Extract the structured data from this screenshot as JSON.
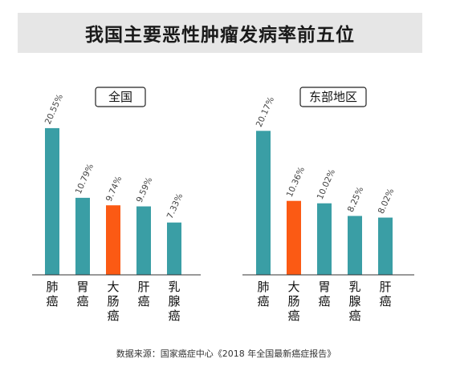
{
  "title": "我国主要恶性肿瘤发病率前五位",
  "source": "数据来源：国家癌症中心《2018 年全国最新癌症报告》",
  "colors": {
    "bar": "#3a9ea5",
    "highlight": "#fb5a14",
    "title_bg": "#e6e6e6"
  },
  "chart_data": [
    {
      "type": "bar",
      "title": "全国",
      "categories": [
        "肺癌",
        "胃癌",
        "大肠癌",
        "肝癌",
        "乳腺癌"
      ],
      "values": [
        20.55,
        10.79,
        9.74,
        9.59,
        7.33
      ],
      "labels": [
        "20.55%",
        "10.79%",
        "9.74%",
        "9.59%",
        "7.33%"
      ],
      "highlight": "大肠癌",
      "ylim": [
        0,
        22
      ],
      "grid": false
    },
    {
      "type": "bar",
      "title": "东部地区",
      "categories": [
        "肺癌",
        "大肠癌",
        "胃癌",
        "乳腺癌",
        "肝癌"
      ],
      "values": [
        20.17,
        10.36,
        10.02,
        8.25,
        8.02
      ],
      "labels": [
        "20.17%",
        "10.36%",
        "10.02%",
        "8.25%",
        "8.02%"
      ],
      "highlight": "大肠癌",
      "ylim": [
        0,
        22
      ],
      "grid": false
    }
  ]
}
